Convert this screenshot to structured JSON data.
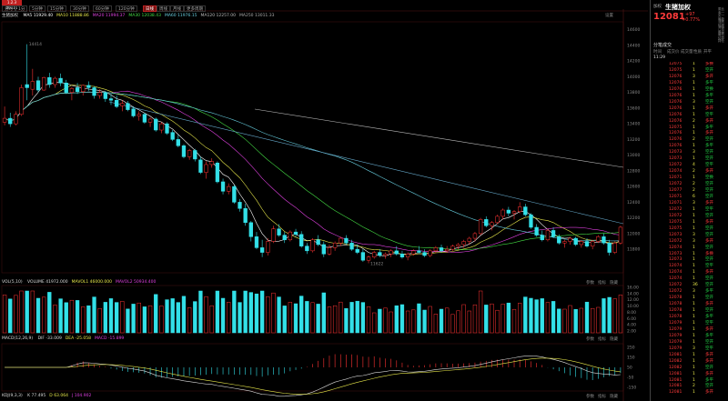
{
  "top_bar": {
    "badge": "1.2.3 00111",
    "tabs": [
      "分时",
      "1分",
      "5分钟",
      "15分钟",
      "30分钟",
      "60分钟",
      "120分钟",
      "日线",
      "周线",
      "月线",
      "更多周期"
    ],
    "active_tab": "日线"
  },
  "legends": {
    "ma_title": "生猪加权",
    "ma_items": [
      {
        "label": "MA5 11929.40",
        "color": "#ffffff"
      },
      {
        "label": "MA10 11888.86",
        "color": "#e8e84a"
      },
      {
        "label": "MA20 11994.37",
        "color": "#e040e0"
      },
      {
        "label": "MA30 12038.43",
        "color": "#44dd44"
      },
      {
        "label": "MA60 11976.15",
        "color": "#66ccdd"
      },
      {
        "label": "MA120 12257.00",
        "color": "#bbbbbb"
      },
      {
        "label": "MA250 13011.33",
        "color": "#aaaaaa"
      }
    ],
    "volume_title": "VOL(5,10)",
    "volume_items": [
      {
        "label": "VOLUME 41972.000",
        "color": "#dddddd"
      },
      {
        "label": "MAVOL1 46000.000",
        "color": "#e8e84a"
      },
      {
        "label": "MAVOL2 50934.400",
        "color": "#e040e0"
      }
    ],
    "macd_title": "MACD(12,26,9)",
    "macd_items": [
      {
        "label": "DIF -33.009",
        "color": "#dddddd"
      },
      {
        "label": "DEA -25.058",
        "color": "#e8e84a"
      },
      {
        "label": "MACD -15.899",
        "color": "#e040e0"
      }
    ],
    "bottom_label": "KDJ(9,3,3)",
    "bottom_items": [
      {
        "label": "K 77.495",
        "color": "#dddddd"
      },
      {
        "label": "D 63.064",
        "color": "#e8e84a"
      },
      {
        "label": "J 104.902",
        "color": "#e040e0"
      }
    ]
  },
  "annotations": {
    "high_label": "14414",
    "low_label": "11622",
    "settings": "设置"
  },
  "price_axis": [
    "14600",
    "14400",
    "14200",
    "14000",
    "13800",
    "13600",
    "13400",
    "13200",
    "13000",
    "12800",
    "12600",
    "12400",
    "12200",
    "12000",
    "11800"
  ],
  "volume_axis": [
    "16.00",
    "14.00",
    "12.00",
    "10.00",
    "8.00",
    "6.00",
    "4.00",
    "2.00"
  ],
  "macd_axis": [
    "250",
    "150",
    "50",
    "-50",
    "-150"
  ],
  "panel_buttons": [
    "参数",
    "指标",
    "隐藏"
  ],
  "quote": {
    "name": "生猪加权",
    "prefix": "加权",
    "price": "12081",
    "change": "+97",
    "pct": "+0.77%",
    "side_labels": [
      "委比",
      "卖一",
      "买一",
      "最新",
      "涨跌",
      "幅度",
      "开盘",
      "最高",
      "最低",
      "结算",
      "持仓"
    ],
    "trades_header": "分笔成交",
    "trades_cols": [
      "时间",
      "成交价",
      "成交量",
      "性质",
      "开平"
    ],
    "trades_time": "11:29",
    "trades": [
      {
        "p": "12075",
        "v": "1",
        "t": "多换",
        "up": true
      },
      {
        "p": "12075",
        "v": "1",
        "t": "空开",
        "up": false
      },
      {
        "p": "12076",
        "v": "3",
        "t": "多开",
        "up": true
      },
      {
        "p": "12076",
        "v": "1",
        "t": "多平",
        "up": false
      },
      {
        "p": "12076",
        "v": "1",
        "t": "空换",
        "up": false
      },
      {
        "p": "12076",
        "v": "1",
        "t": "多平",
        "up": false
      },
      {
        "p": "12076",
        "v": "3",
        "t": "空开",
        "up": false
      },
      {
        "p": "12076",
        "v": "1",
        "t": "多开",
        "up": true
      },
      {
        "p": "12076",
        "v": "1",
        "t": "空平",
        "up": false
      },
      {
        "p": "12076",
        "v": "2",
        "t": "多开",
        "up": true
      },
      {
        "p": "12075",
        "v": "1",
        "t": "多平",
        "up": false
      },
      {
        "p": "12076",
        "v": "1",
        "t": "多开",
        "up": true
      },
      {
        "p": "12076",
        "v": "2",
        "t": "空开",
        "up": false
      },
      {
        "p": "12076",
        "v": "1",
        "t": "多平",
        "up": false
      },
      {
        "p": "12073",
        "v": "3",
        "t": "空开",
        "up": false
      },
      {
        "p": "12073",
        "v": "1",
        "t": "空开",
        "up": false
      },
      {
        "p": "12072",
        "v": "4",
        "t": "空平",
        "up": false
      },
      {
        "p": "12074",
        "v": "2",
        "t": "多开",
        "up": true
      },
      {
        "p": "12071",
        "v": "1",
        "t": "空换",
        "up": false
      },
      {
        "p": "12072",
        "v": "2",
        "t": "空开",
        "up": false
      },
      {
        "p": "12077",
        "v": "2",
        "t": "空开",
        "up": false
      },
      {
        "p": "12071",
        "v": "6",
        "t": "空开",
        "up": false
      },
      {
        "p": "12071",
        "v": "3",
        "t": "多开",
        "up": true
      },
      {
        "p": "12072",
        "v": "1",
        "t": "空平",
        "up": false
      },
      {
        "p": "12072",
        "v": "1",
        "t": "空开",
        "up": false
      },
      {
        "p": "12075",
        "v": "1",
        "t": "多开",
        "up": true
      },
      {
        "p": "12075",
        "v": "1",
        "t": "空开",
        "up": false
      },
      {
        "p": "12073",
        "v": "3",
        "t": "空开",
        "up": false
      },
      {
        "p": "12072",
        "v": "3",
        "t": "多开",
        "up": true
      },
      {
        "p": "12074",
        "v": "1",
        "t": "空开",
        "up": false
      },
      {
        "p": "12073",
        "v": "1",
        "t": "多换",
        "up": true
      },
      {
        "p": "12073",
        "v": "1",
        "t": "空开",
        "up": false
      },
      {
        "p": "12074",
        "v": "1",
        "t": "空平",
        "up": false
      },
      {
        "p": "12074",
        "v": "1",
        "t": "多开",
        "up": true
      },
      {
        "p": "12074",
        "v": "1",
        "t": "空开",
        "up": false
      },
      {
        "p": "12072",
        "v": "36",
        "t": "空开",
        "up": false
      },
      {
        "p": "12072",
        "v": "3",
        "t": "多平",
        "up": false
      },
      {
        "p": "12078",
        "v": "1",
        "t": "空开",
        "up": false
      },
      {
        "p": "12078",
        "v": "1",
        "t": "多开",
        "up": true
      },
      {
        "p": "12078",
        "v": "1",
        "t": "空开",
        "up": false
      },
      {
        "p": "12078",
        "v": "1",
        "t": "多平",
        "up": false
      },
      {
        "p": "12079",
        "v": "1",
        "t": "空平",
        "up": false
      },
      {
        "p": "12079",
        "v": "1",
        "t": "多开",
        "up": true
      },
      {
        "p": "12079",
        "v": "1",
        "t": "多平",
        "up": false
      },
      {
        "p": "12079",
        "v": "1",
        "t": "空开",
        "up": false
      },
      {
        "p": "12079",
        "v": "3",
        "t": "空平",
        "up": false
      },
      {
        "p": "12081",
        "v": "1",
        "t": "多开",
        "up": true
      },
      {
        "p": "12082",
        "v": "1",
        "t": "多开",
        "up": true
      },
      {
        "p": "12082",
        "v": "1",
        "t": "空开",
        "up": false
      },
      {
        "p": "12081",
        "v": "1",
        "t": "多开",
        "up": true
      },
      {
        "p": "12081",
        "v": "1",
        "t": "多平",
        "up": false
      },
      {
        "p": "12081",
        "v": "2",
        "t": "空开",
        "up": false
      },
      {
        "p": "12081",
        "v": "1",
        "t": "多开",
        "up": true
      }
    ]
  },
  "chart_data": {
    "type": "candlestick",
    "title": "生猪加权",
    "y_range": [
      11500,
      14700
    ],
    "candles": [
      {
        "o": 13420,
        "h": 13620,
        "l": 13380,
        "c": 13470
      },
      {
        "o": 13470,
        "h": 13540,
        "l": 13360,
        "c": 13400
      },
      {
        "o": 13400,
        "h": 13560,
        "l": 13380,
        "c": 13520
      },
      {
        "o": 13520,
        "h": 13900,
        "l": 13500,
        "c": 13860
      },
      {
        "o": 13900,
        "h": 14414,
        "l": 13700,
        "c": 13860
      },
      {
        "o": 13840,
        "h": 14100,
        "l": 13760,
        "c": 13940
      },
      {
        "o": 13950,
        "h": 14000,
        "l": 13800,
        "c": 13830
      },
      {
        "o": 13830,
        "h": 14000,
        "l": 13820,
        "c": 13990
      },
      {
        "o": 13990,
        "h": 14050,
        "l": 13860,
        "c": 13900
      },
      {
        "o": 13900,
        "h": 14000,
        "l": 13860,
        "c": 13980
      },
      {
        "o": 13980,
        "h": 14040,
        "l": 13880,
        "c": 13920
      },
      {
        "o": 13920,
        "h": 13960,
        "l": 13780,
        "c": 13800
      },
      {
        "o": 13800,
        "h": 13870,
        "l": 13700,
        "c": 13850
      },
      {
        "o": 13860,
        "h": 13920,
        "l": 13780,
        "c": 13810
      },
      {
        "o": 13810,
        "h": 13900,
        "l": 13760,
        "c": 13890
      },
      {
        "o": 13890,
        "h": 13940,
        "l": 13820,
        "c": 13860
      },
      {
        "o": 13860,
        "h": 13880,
        "l": 13720,
        "c": 13760
      },
      {
        "o": 13760,
        "h": 13840,
        "l": 13720,
        "c": 13800
      },
      {
        "o": 13800,
        "h": 13820,
        "l": 13680,
        "c": 13720
      },
      {
        "o": 13720,
        "h": 13780,
        "l": 13640,
        "c": 13700
      },
      {
        "o": 13700,
        "h": 13760,
        "l": 13600,
        "c": 13620
      },
      {
        "o": 13630,
        "h": 13700,
        "l": 13560,
        "c": 13660
      },
      {
        "o": 13660,
        "h": 13690,
        "l": 13560,
        "c": 13580
      },
      {
        "o": 13590,
        "h": 13620,
        "l": 13480,
        "c": 13500
      },
      {
        "o": 13500,
        "h": 13560,
        "l": 13440,
        "c": 13520
      },
      {
        "o": 13520,
        "h": 13540,
        "l": 13400,
        "c": 13420
      },
      {
        "o": 13420,
        "h": 13480,
        "l": 13360,
        "c": 13460
      },
      {
        "o": 13460,
        "h": 13480,
        "l": 13300,
        "c": 13320
      },
      {
        "o": 13320,
        "h": 13420,
        "l": 13280,
        "c": 13400
      },
      {
        "o": 13400,
        "h": 13420,
        "l": 13260,
        "c": 13280
      },
      {
        "o": 13290,
        "h": 13320,
        "l": 13180,
        "c": 13200
      },
      {
        "o": 13200,
        "h": 13260,
        "l": 13100,
        "c": 13120
      },
      {
        "o": 13120,
        "h": 13140,
        "l": 12960,
        "c": 12980
      },
      {
        "o": 12980,
        "h": 13080,
        "l": 12940,
        "c": 13060
      },
      {
        "o": 13060,
        "h": 13080,
        "l": 12920,
        "c": 12950
      },
      {
        "o": 12940,
        "h": 12980,
        "l": 12760,
        "c": 12780
      },
      {
        "o": 12780,
        "h": 12920,
        "l": 12700,
        "c": 12880
      },
      {
        "o": 12880,
        "h": 12960,
        "l": 12840,
        "c": 12920
      },
      {
        "o": 12900,
        "h": 12920,
        "l": 12640,
        "c": 12660
      },
      {
        "o": 12660,
        "h": 12700,
        "l": 12500,
        "c": 12540
      },
      {
        "o": 12540,
        "h": 12640,
        "l": 12500,
        "c": 12600
      },
      {
        "o": 12600,
        "h": 12620,
        "l": 12380,
        "c": 12400
      },
      {
        "o": 12400,
        "h": 12440,
        "l": 12280,
        "c": 12320
      },
      {
        "o": 12320,
        "h": 12380,
        "l": 12100,
        "c": 12140
      },
      {
        "o": 12140,
        "h": 12160,
        "l": 11900,
        "c": 11960
      },
      {
        "o": 11960,
        "h": 12020,
        "l": 11800,
        "c": 11820
      },
      {
        "o": 11820,
        "h": 11920,
        "l": 11700,
        "c": 11760
      },
      {
        "o": 11760,
        "h": 11940,
        "l": 11720,
        "c": 11900
      },
      {
        "o": 11900,
        "h": 12100,
        "l": 11880,
        "c": 12060
      },
      {
        "o": 12060,
        "h": 12120,
        "l": 11960,
        "c": 11980
      },
      {
        "o": 11980,
        "h": 12020,
        "l": 11880,
        "c": 11920
      },
      {
        "o": 11920,
        "h": 12040,
        "l": 11900,
        "c": 12020
      },
      {
        "o": 12020,
        "h": 12060,
        "l": 11960,
        "c": 11990
      },
      {
        "o": 11990,
        "h": 12030,
        "l": 11820,
        "c": 11840
      },
      {
        "o": 11840,
        "h": 11880,
        "l": 11740,
        "c": 11780
      },
      {
        "o": 11780,
        "h": 11940,
        "l": 11760,
        "c": 11920
      },
      {
        "o": 11920,
        "h": 11980,
        "l": 11840,
        "c": 11860
      },
      {
        "o": 11860,
        "h": 11900,
        "l": 11700,
        "c": 11740
      },
      {
        "o": 11740,
        "h": 11860,
        "l": 11720,
        "c": 11820
      },
      {
        "o": 11820,
        "h": 11900,
        "l": 11780,
        "c": 11880
      },
      {
        "o": 11880,
        "h": 11960,
        "l": 11840,
        "c": 11940
      },
      {
        "o": 11940,
        "h": 11980,
        "l": 11860,
        "c": 11880
      },
      {
        "o": 11880,
        "h": 11920,
        "l": 11780,
        "c": 11800
      },
      {
        "o": 11800,
        "h": 11860,
        "l": 11740,
        "c": 11760
      },
      {
        "o": 11760,
        "h": 11800,
        "l": 11640,
        "c": 11660
      },
      {
        "o": 11660,
        "h": 11720,
        "l": 11622,
        "c": 11700
      },
      {
        "o": 11700,
        "h": 11780,
        "l": 11680,
        "c": 11760
      },
      {
        "o": 11760,
        "h": 11800,
        "l": 11700,
        "c": 11720
      },
      {
        "o": 11720,
        "h": 11760,
        "l": 11680,
        "c": 11740
      },
      {
        "o": 11740,
        "h": 11800,
        "l": 11700,
        "c": 11780
      },
      {
        "o": 11780,
        "h": 11840,
        "l": 11720,
        "c": 11740
      },
      {
        "o": 11740,
        "h": 11780,
        "l": 11680,
        "c": 11700
      },
      {
        "o": 11700,
        "h": 11760,
        "l": 11660,
        "c": 11740
      },
      {
        "o": 11740,
        "h": 11800,
        "l": 11720,
        "c": 11780
      },
      {
        "o": 11780,
        "h": 11840,
        "l": 11740,
        "c": 11760
      },
      {
        "o": 11760,
        "h": 11800,
        "l": 11700,
        "c": 11720
      },
      {
        "o": 11720,
        "h": 11800,
        "l": 11700,
        "c": 11780
      },
      {
        "o": 11780,
        "h": 11840,
        "l": 11750,
        "c": 11820
      },
      {
        "o": 11820,
        "h": 11860,
        "l": 11760,
        "c": 11780
      },
      {
        "o": 11780,
        "h": 11840,
        "l": 11760,
        "c": 11800
      },
      {
        "o": 11800,
        "h": 11860,
        "l": 11780,
        "c": 11840
      },
      {
        "o": 11840,
        "h": 11880,
        "l": 11800,
        "c": 11860
      },
      {
        "o": 11860,
        "h": 11920,
        "l": 11820,
        "c": 11900
      },
      {
        "o": 11900,
        "h": 11960,
        "l": 11860,
        "c": 11940
      },
      {
        "o": 11940,
        "h": 12020,
        "l": 11900,
        "c": 12000
      },
      {
        "o": 12000,
        "h": 12200,
        "l": 11980,
        "c": 12180
      },
      {
        "o": 12180,
        "h": 12220,
        "l": 12080,
        "c": 12100
      },
      {
        "o": 12100,
        "h": 12160,
        "l": 12040,
        "c": 12140
      },
      {
        "o": 12140,
        "h": 12240,
        "l": 12120,
        "c": 12220
      },
      {
        "o": 12220,
        "h": 12320,
        "l": 12180,
        "c": 12300
      },
      {
        "o": 12300,
        "h": 12340,
        "l": 12220,
        "c": 12260
      },
      {
        "o": 12260,
        "h": 12300,
        "l": 12180,
        "c": 12280
      },
      {
        "o": 12280,
        "h": 12400,
        "l": 12260,
        "c": 12340
      },
      {
        "o": 12340,
        "h": 12380,
        "l": 12220,
        "c": 12240
      },
      {
        "o": 12240,
        "h": 12260,
        "l": 12060,
        "c": 12080
      },
      {
        "o": 12080,
        "h": 12120,
        "l": 11960,
        "c": 11980
      },
      {
        "o": 11980,
        "h": 12040,
        "l": 11900,
        "c": 11920
      },
      {
        "o": 11920,
        "h": 12060,
        "l": 11900,
        "c": 12040
      },
      {
        "o": 12040,
        "h": 12080,
        "l": 11940,
        "c": 11960
      },
      {
        "o": 11960,
        "h": 11990,
        "l": 11860,
        "c": 11880
      },
      {
        "o": 11880,
        "h": 11920,
        "l": 11820,
        "c": 11900
      },
      {
        "o": 11900,
        "h": 11960,
        "l": 11860,
        "c": 11940
      },
      {
        "o": 11940,
        "h": 11960,
        "l": 11840,
        "c": 11860
      },
      {
        "o": 11860,
        "h": 11920,
        "l": 11820,
        "c": 11900
      },
      {
        "o": 11900,
        "h": 11940,
        "l": 11820,
        "c": 11840
      },
      {
        "o": 11840,
        "h": 11920,
        "l": 11800,
        "c": 11900
      },
      {
        "o": 11900,
        "h": 11980,
        "l": 11880,
        "c": 11960
      },
      {
        "o": 11960,
        "h": 12000,
        "l": 11860,
        "c": 11880
      },
      {
        "o": 11880,
        "h": 11920,
        "l": 11720,
        "c": 11760
      },
      {
        "o": 11760,
        "h": 11900,
        "l": 11740,
        "c": 11880
      },
      {
        "o": 11880,
        "h": 12100,
        "l": 11860,
        "c": 12081
      }
    ]
  }
}
